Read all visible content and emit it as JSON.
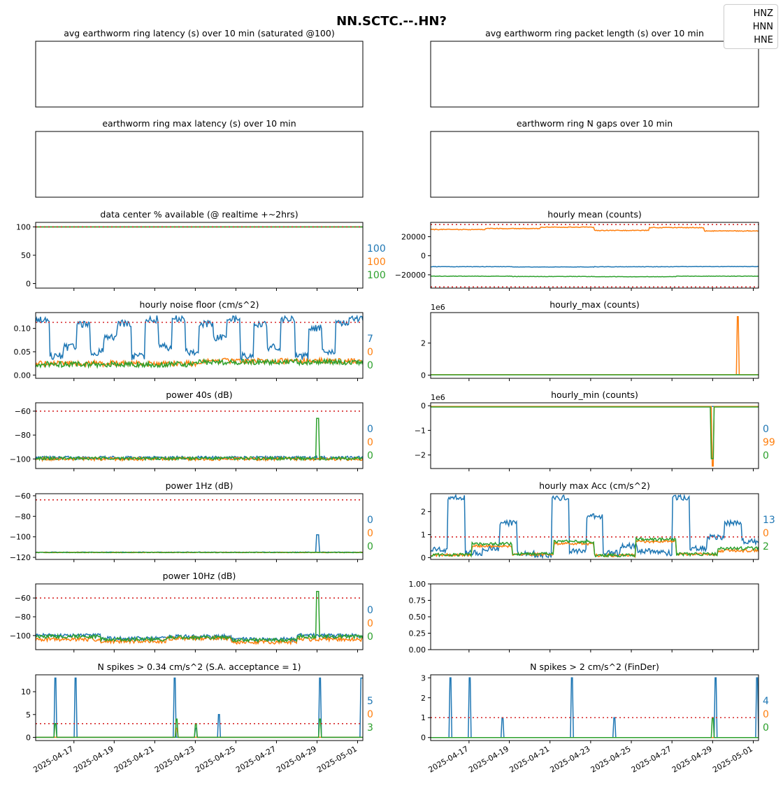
{
  "figure_title": "NN.SCTC.--.HN?",
  "legend": [
    "HNZ",
    "HNN",
    "HNE"
  ],
  "colors": {
    "HNZ": "#1f77b4",
    "HNN": "#ff7f0e",
    "HNE": "#2ca02c",
    "threshold": "#d62728"
  },
  "x_ticks": [
    "2025-04-17",
    "2025-04-19",
    "2025-04-21",
    "2025-04-23",
    "2025-04-25",
    "2025-04-27",
    "2025-04-29",
    "2025-05-01"
  ],
  "chart_data": [
    {
      "id": "avg_latency",
      "type": "line",
      "title": "avg earthworm ring latency (s)   over 10 min (saturated @100)",
      "series": [],
      "show_y_ticks": false,
      "show_x_labels": false
    },
    {
      "id": "avg_packet",
      "type": "line",
      "title": "avg earthworm ring packet length (s)   over 10 min",
      "series": [],
      "show_y_ticks": false,
      "show_x_labels": false
    },
    {
      "id": "max_latency",
      "type": "line",
      "title": "earthworm ring max latency (s)   over 10 min",
      "series": [],
      "show_y_ticks": false,
      "show_x_labels": false
    },
    {
      "id": "n_gaps",
      "type": "line",
      "title": "earthworm ring N gaps   over 10 min",
      "series": [],
      "show_y_ticks": false,
      "show_x_labels": false
    },
    {
      "id": "availability",
      "type": "line",
      "title": "data center % available (@ realtime +~2hrs)",
      "ylim": [
        -8,
        108
      ],
      "yticks": [
        "0",
        "50",
        "100"
      ],
      "ytick_values": [
        0,
        50,
        100
      ],
      "thresholds": [
        100
      ],
      "right_labels": [
        "100",
        "100",
        "100"
      ],
      "series": [
        {
          "name": "HNZ",
          "base": [
            100
          ],
          "noise": 0
        },
        {
          "name": "HNN",
          "base": [
            100
          ],
          "noise": 0
        },
        {
          "name": "HNE",
          "base": [
            100
          ],
          "noise": 0
        }
      ]
    },
    {
      "id": "hourly_mean",
      "type": "line",
      "title": "hourly mean (counts)",
      "ylim": [
        -34000,
        35000
      ],
      "yticks": [
        "−20000",
        "0",
        "20000"
      ],
      "ytick_values": [
        -20000,
        0,
        20000
      ],
      "thresholds": [
        32768,
        -32768
      ],
      "right_labels": [],
      "series": [
        {
          "name": "HNZ",
          "base": [
            -11500,
            -11800,
            -11600,
            -11400
          ],
          "noise": 200
        },
        {
          "name": "HNN",
          "base": [
            27500,
            28500,
            30000,
            26500,
            29500,
            26000
          ],
          "noise": 400
        },
        {
          "name": "HNE",
          "base": [
            -21500,
            -21800,
            -22000,
            -21500
          ],
          "noise": 200
        }
      ]
    },
    {
      "id": "noise_floor",
      "type": "line",
      "title": "hourly noise floor (cm/s^2)",
      "ylim": [
        -0.007,
        0.134
      ],
      "yticks": [
        "0.00",
        "0.05",
        "0.10"
      ],
      "ytick_values": [
        0,
        0.05,
        0.1
      ],
      "thresholds": [
        0.113
      ],
      "right_labels": [
        "7",
        "0",
        "0"
      ],
      "series": [
        {
          "name": "HNZ",
          "base": [
            0.12,
            0.04,
            0.06,
            0.11,
            0.05,
            0.08,
            0.11,
            0.04,
            0.12,
            0.06,
            0.12,
            0.05,
            0.11,
            0.08,
            0.12,
            0.04,
            0.11,
            0.06,
            0.12,
            0.04,
            0.1,
            0.05,
            0.11,
            0.12
          ],
          "noise": 0.008
        },
        {
          "name": "HNN",
          "base": [
            0.025,
            0.03
          ],
          "noise": 0.006
        },
        {
          "name": "HNE",
          "base": [
            0.023,
            0.028
          ],
          "noise": 0.006
        }
      ]
    },
    {
      "id": "hourly_max",
      "type": "line",
      "title": "hourly_max (counts)",
      "ylim": [
        -0.2,
        3.9
      ],
      "yticks": [
        "0",
        "2"
      ],
      "ytick_values": [
        0,
        2
      ],
      "multiplier": "1e6",
      "thresholds": [],
      "right_labels": [],
      "series": [
        {
          "name": "HNZ",
          "base": [
            0.03
          ],
          "noise": 0
        },
        {
          "name": "HNN",
          "base": [
            0.03
          ],
          "noise": 0,
          "spikes": [
            [
              0.937,
              3.65
            ]
          ]
        },
        {
          "name": "HNE",
          "base": [
            0.02
          ],
          "noise": 0
        }
      ]
    },
    {
      "id": "power_40s",
      "type": "line",
      "title": "power 40s (dB)",
      "ylim": [
        -108,
        -53
      ],
      "yticks": [
        "−100",
        "−80",
        "−60"
      ],
      "ytick_values": [
        -100,
        -80,
        -60
      ],
      "thresholds": [
        -60
      ],
      "right_labels": [
        "0",
        "0",
        "0"
      ],
      "series": [
        {
          "name": "HNZ",
          "base": [
            -99
          ],
          "noise": 1.3
        },
        {
          "name": "HNN",
          "base": [
            -100
          ],
          "noise": 1.3
        },
        {
          "name": "HNE",
          "base": [
            -99.5
          ],
          "noise": 1.3,
          "spikes": [
            [
              0.862,
              -66
            ]
          ]
        }
      ]
    },
    {
      "id": "hourly_min",
      "type": "line",
      "title": "hourly_min (counts)",
      "ylim": [
        -2.55,
        0.12
      ],
      "yticks": [
        "−2",
        "−1",
        "0"
      ],
      "ytick_values": [
        -2,
        -1,
        0
      ],
      "multiplier": "1e6",
      "thresholds": [],
      "right_labels": [
        "0",
        "99",
        "0"
      ],
      "series": [
        {
          "name": "HNZ",
          "base": [
            -0.03
          ],
          "noise": 0
        },
        {
          "name": "HNN",
          "base": [
            -0.03
          ],
          "noise": 0,
          "spikes": [
            [
              0.861,
              -2.45
            ]
          ]
        },
        {
          "name": "HNE",
          "base": [
            -0.05
          ],
          "noise": 0,
          "spikes": [
            [
              0.859,
              -2.15
            ]
          ]
        }
      ]
    },
    {
      "id": "power_1hz",
      "type": "line",
      "title": "power 1Hz (dB)",
      "ylim": [
        -122,
        -58
      ],
      "yticks": [
        "−120",
        "−100",
        "−80",
        "−60"
      ],
      "ytick_values": [
        -120,
        -100,
        -80,
        -60
      ],
      "thresholds": [
        -64
      ],
      "right_labels": [
        "0",
        "0",
        "0"
      ],
      "series": [
        {
          "name": "HNZ",
          "base": [
            -115
          ],
          "noise": 0.3,
          "spikes": [
            [
              0.862,
              -98
            ]
          ]
        },
        {
          "name": "HNN",
          "base": [
            -115.2
          ],
          "noise": 0.3
        },
        {
          "name": "HNE",
          "base": [
            -115.2
          ],
          "noise": 0.3
        }
      ]
    },
    {
      "id": "hourly_max_acc",
      "type": "line",
      "title": "hourly max Acc (cm/s^2)",
      "ylim": [
        -0.08,
        2.78
      ],
      "yticks": [
        "0",
        "1",
        "2"
      ],
      "ytick_values": [
        0,
        1,
        2
      ],
      "thresholds": [
        0.9
      ],
      "right_labels": [
        "13",
        "0",
        "2"
      ],
      "series": [
        {
          "name": "HNZ",
          "base": [
            0.35,
            2.6,
            0.2,
            0.4,
            1.5,
            0.2,
            0.1,
            2.6,
            0.3,
            1.8,
            0.2,
            0.5,
            0.3,
            0.2,
            2.6,
            0.4,
            0.9,
            1.5,
            0.7
          ],
          "noise": 0.12
        },
        {
          "name": "HNN",
          "base": [
            0.12,
            0.5,
            0.15,
            0.6,
            0.1,
            0.7,
            0.15,
            0.3
          ],
          "noise": 0.06
        },
        {
          "name": "HNE",
          "base": [
            0.12,
            0.6,
            0.15,
            0.7,
            0.1,
            0.8,
            0.15,
            0.4
          ],
          "noise": 0.07
        }
      ]
    },
    {
      "id": "power_10hz",
      "type": "line",
      "title": "power 10Hz (dB)",
      "ylim": [
        -115,
        -45
      ],
      "yticks": [
        "−100",
        "−80",
        "−60"
      ],
      "ytick_values": [
        -100,
        -80,
        -60
      ],
      "thresholds": [
        -60
      ],
      "right_labels": [
        "0",
        "0",
        "0"
      ],
      "series": [
        {
          "name": "HNZ",
          "base": [
            -100,
            -103,
            -101,
            -104,
            -100
          ],
          "noise": 2
        },
        {
          "name": "HNN",
          "base": [
            -104,
            -106,
            -103,
            -107,
            -104
          ],
          "noise": 2
        },
        {
          "name": "HNE",
          "base": [
            -101,
            -104,
            -102,
            -105,
            -101
          ],
          "noise": 2,
          "spikes": [
            [
              0.862,
              -53
            ]
          ]
        }
      ]
    },
    {
      "id": "empty_panel",
      "type": "line",
      "title": "",
      "ylim": [
        0,
        1
      ],
      "yticks": [
        "0.00",
        "0.25",
        "0.50",
        "0.75",
        "1.00"
      ],
      "ytick_values": [
        0,
        0.25,
        0.5,
        0.75,
        1
      ],
      "thresholds": [],
      "right_labels": [],
      "series": []
    },
    {
      "id": "spikes_034",
      "type": "line",
      "title": "N spikes > 0.34 cm/s^2 (S.A. acceptance = 1)",
      "ylim": [
        -0.7,
        13.7
      ],
      "yticks": [
        "0",
        "5",
        "10"
      ],
      "ytick_values": [
        0,
        5,
        10
      ],
      "thresholds": [
        3
      ],
      "right_labels": [
        "5",
        "0",
        "3"
      ],
      "series": [
        {
          "name": "HNZ",
          "base": [
            0
          ],
          "noise": 0,
          "spikes": [
            [
              0.06,
              13
            ],
            [
              0.122,
              13
            ],
            [
              0.425,
              13
            ],
            [
              0.49,
              2
            ],
            [
              0.56,
              5
            ],
            [
              0.87,
              13
            ],
            [
              0.997,
              13
            ]
          ]
        },
        {
          "name": "HNN",
          "base": [
            0
          ],
          "noise": 0,
          "spikes": [
            [
              0.43,
              2
            ]
          ]
        },
        {
          "name": "HNE",
          "base": [
            0
          ],
          "noise": 0,
          "spikes": [
            [
              0.06,
              3
            ],
            [
              0.43,
              4
            ],
            [
              0.49,
              3
            ],
            [
              0.87,
              4
            ]
          ]
        }
      ]
    },
    {
      "id": "spikes_2",
      "type": "line",
      "title": "N spikes > 2 cm/s^2 (FinDer)",
      "ylim": [
        -0.15,
        3.15
      ],
      "yticks": [
        "0",
        "1",
        "2",
        "3"
      ],
      "ytick_values": [
        0,
        1,
        2,
        3
      ],
      "thresholds": [
        1
      ],
      "right_labels": [
        "4",
        "0",
        "0"
      ],
      "series": [
        {
          "name": "HNZ",
          "base": [
            0
          ],
          "noise": 0,
          "spikes": [
            [
              0.06,
              3
            ],
            [
              0.12,
              3
            ],
            [
              0.22,
              1
            ],
            [
              0.43,
              3
            ],
            [
              0.56,
              1
            ],
            [
              0.87,
              3
            ],
            [
              0.995,
              3
            ]
          ]
        },
        {
          "name": "HNN",
          "base": [
            0
          ],
          "noise": 0
        },
        {
          "name": "HNE",
          "base": [
            0
          ],
          "noise": 0,
          "spikes": [
            [
              0.86,
              1
            ]
          ]
        }
      ]
    }
  ]
}
